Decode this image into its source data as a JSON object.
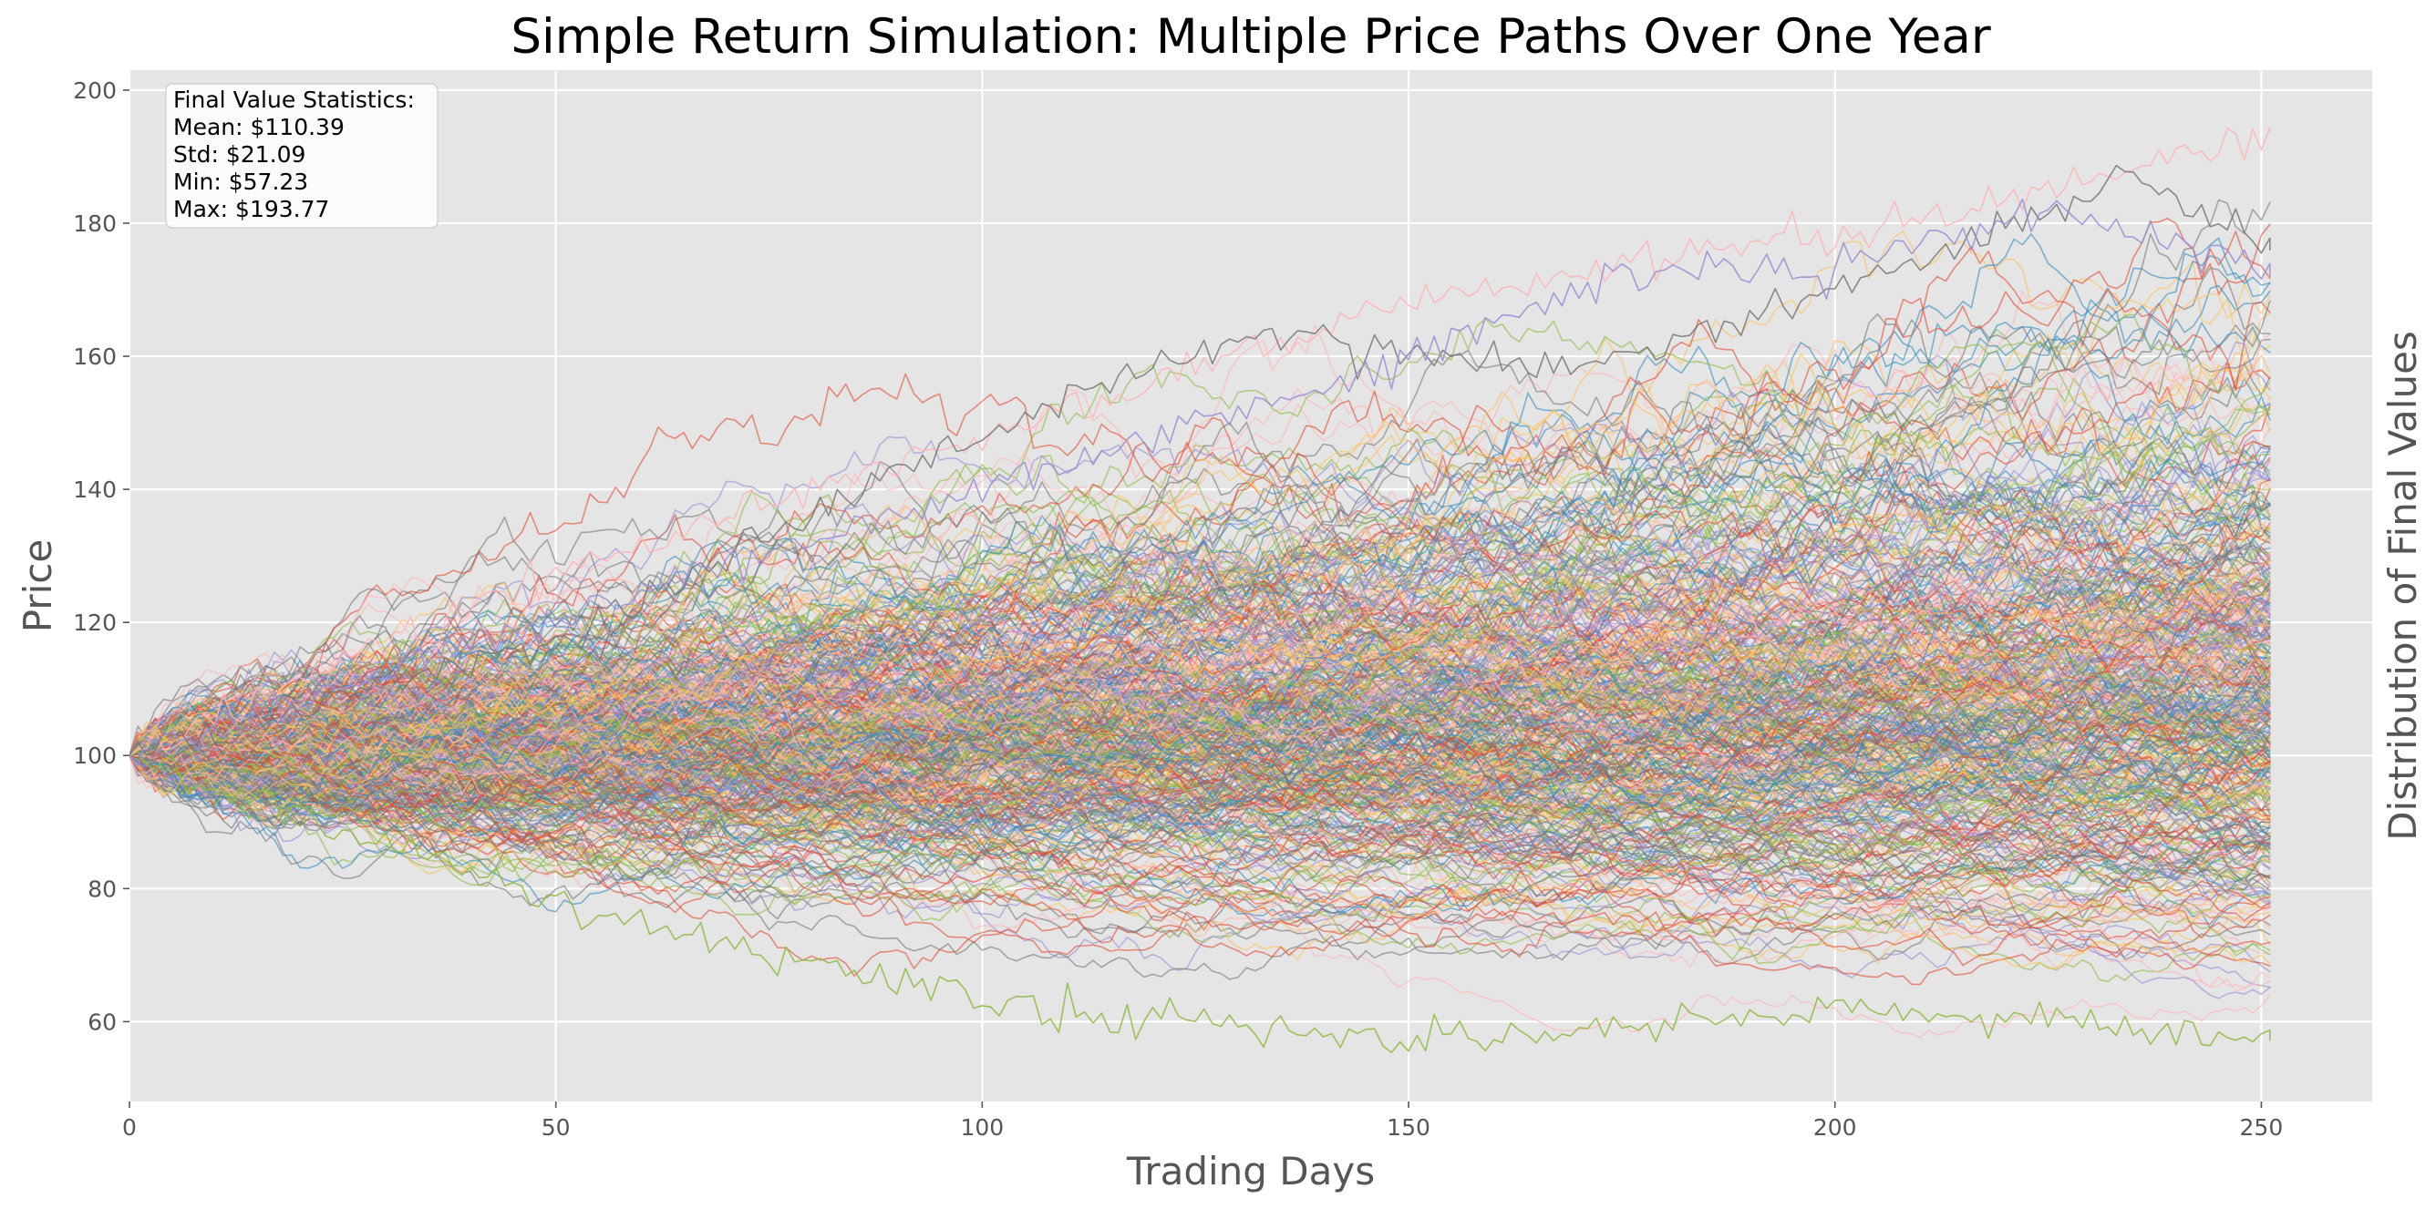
{
  "chart_data": {
    "type": "line",
    "title": "Simple Return Simulation: Multiple Price Paths Over One Year",
    "xlabel": "Trading Days",
    "ylabel": "Price",
    "right_label": "Distribution of Final Values",
    "xlim": [
      0,
      263
    ],
    "ylim": [
      48,
      203
    ],
    "x_ticks": [
      0,
      50,
      100,
      150,
      200,
      250
    ],
    "y_ticks": [
      60,
      80,
      100,
      120,
      140,
      160,
      180,
      200
    ],
    "grid": true,
    "legend": "none",
    "n_days": 252,
    "start_value": 100,
    "final_value_statistics": {
      "title": "Final Value Statistics:",
      "lines": [
        "Mean: $110.39",
        "Std: $21.09",
        "Min: $57.23",
        "Max: $193.77"
      ],
      "mean": 110.39,
      "std": 21.09,
      "min": 57.23,
      "max": 193.77
    },
    "series_colors": [
      "#E24A33",
      "#348ABD",
      "#988ED5",
      "#777777",
      "#FBC15E",
      "#8EBA42",
      "#FFB5B8"
    ],
    "background_color": "#E5E5E5",
    "highlighted_paths": [
      {
        "name": "",
        "color": "#8EBA42",
        "x": [
          0,
          50,
          100,
          150,
          200,
          252
        ],
        "values": [
          100,
          78,
          63,
          57,
          62,
          57.23
        ]
      },
      {
        "name": "",
        "color": "#FFB5B8",
        "x": [
          0,
          50,
          100,
          150,
          200,
          252
        ],
        "values": [
          100,
          128,
          148,
          168,
          178,
          193.77
        ]
      },
      {
        "name": "",
        "color": "#777777",
        "x": [
          0,
          50,
          100,
          130,
          170,
          200,
          235,
          252
        ],
        "values": [
          100,
          118,
          148,
          163,
          158,
          170,
          187,
          176
        ]
      },
      {
        "name": "",
        "color": "#988ED5",
        "x": [
          0,
          50,
          100,
          150,
          175,
          200,
          225,
          252
        ],
        "values": [
          100,
          120,
          140,
          160,
          172,
          173,
          182,
          172
        ]
      }
    ]
  }
}
